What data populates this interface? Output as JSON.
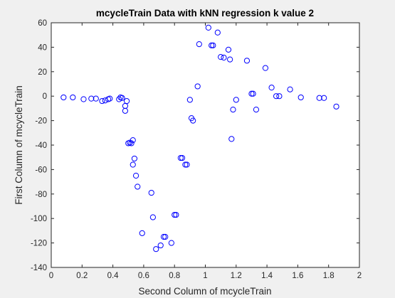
{
  "chart_data": {
    "type": "scatter",
    "title": "mcycleTrain Data with kNN regression k value 2",
    "xlabel": "Second Column of mcycleTrain",
    "ylabel": "First Column of mcycleTrain",
    "xlim": [
      0,
      2
    ],
    "ylim": [
      -140,
      60
    ],
    "xticks": [
      0,
      0.2,
      0.4,
      0.6,
      0.8,
      1,
      1.2,
      1.4,
      1.6,
      1.8,
      2
    ],
    "xtick_labels": [
      "0",
      "0.2",
      "0.4",
      "0.6",
      "0.8",
      "1",
      "1.2",
      "1.4",
      "1.6",
      "1.8",
      "2"
    ],
    "yticks": [
      -140,
      -120,
      -100,
      -80,
      -60,
      -40,
      -20,
      0,
      20,
      40,
      60
    ],
    "ytick_labels": [
      "-140",
      "-120",
      "-100",
      "-80",
      "-60",
      "-40",
      "-20",
      "0",
      "20",
      "40",
      "60"
    ],
    "grid": false,
    "marker": "circle-open",
    "marker_color": "#0000ff",
    "points": [
      {
        "x": 0.08,
        "y": -1
      },
      {
        "x": 0.14,
        "y": -1
      },
      {
        "x": 0.21,
        "y": -2.5
      },
      {
        "x": 0.26,
        "y": -2
      },
      {
        "x": 0.29,
        "y": -2
      },
      {
        "x": 0.33,
        "y": -4
      },
      {
        "x": 0.35,
        "y": -3.5
      },
      {
        "x": 0.37,
        "y": -2.5
      },
      {
        "x": 0.38,
        "y": -2
      },
      {
        "x": 0.44,
        "y": -2.5
      },
      {
        "x": 0.45,
        "y": -1
      },
      {
        "x": 0.46,
        "y": -1.5
      },
      {
        "x": 0.48,
        "y": -8
      },
      {
        "x": 0.49,
        "y": -4
      },
      {
        "x": 0.48,
        "y": -12
      },
      {
        "x": 0.5,
        "y": -38.5
      },
      {
        "x": 0.51,
        "y": -38
      },
      {
        "x": 0.52,
        "y": -38.5
      },
      {
        "x": 0.53,
        "y": -36
      },
      {
        "x": 0.53,
        "y": -56
      },
      {
        "x": 0.54,
        "y": -51
      },
      {
        "x": 0.55,
        "y": -65
      },
      {
        "x": 0.56,
        "y": -74
      },
      {
        "x": 0.59,
        "y": -112
      },
      {
        "x": 0.65,
        "y": -79
      },
      {
        "x": 0.66,
        "y": -99
      },
      {
        "x": 0.68,
        "y": -125
      },
      {
        "x": 0.71,
        "y": -122
      },
      {
        "x": 0.73,
        "y": -115
      },
      {
        "x": 0.74,
        "y": -115
      },
      {
        "x": 0.78,
        "y": -120
      },
      {
        "x": 0.8,
        "y": -97
      },
      {
        "x": 0.81,
        "y": -97
      },
      {
        "x": 0.84,
        "y": -50.5
      },
      {
        "x": 0.85,
        "y": -50.5
      },
      {
        "x": 0.87,
        "y": -56
      },
      {
        "x": 0.88,
        "y": -56
      },
      {
        "x": 0.9,
        "y": -3
      },
      {
        "x": 0.91,
        "y": -18
      },
      {
        "x": 0.92,
        "y": -20
      },
      {
        "x": 0.95,
        "y": 8
      },
      {
        "x": 0.96,
        "y": 42.5
      },
      {
        "x": 1.02,
        "y": 56
      },
      {
        "x": 1.04,
        "y": 41.5
      },
      {
        "x": 1.05,
        "y": 41.5
      },
      {
        "x": 1.08,
        "y": 52
      },
      {
        "x": 1.1,
        "y": 32
      },
      {
        "x": 1.12,
        "y": 31.5
      },
      {
        "x": 1.15,
        "y": 38
      },
      {
        "x": 1.16,
        "y": 30
      },
      {
        "x": 1.17,
        "y": -35
      },
      {
        "x": 1.18,
        "y": -11
      },
      {
        "x": 1.2,
        "y": -3
      },
      {
        "x": 1.27,
        "y": 29
      },
      {
        "x": 1.3,
        "y": 2
      },
      {
        "x": 1.31,
        "y": 2
      },
      {
        "x": 1.33,
        "y": -11
      },
      {
        "x": 1.39,
        "y": 23
      },
      {
        "x": 1.43,
        "y": 7
      },
      {
        "x": 1.46,
        "y": 0
      },
      {
        "x": 1.48,
        "y": 0
      },
      {
        "x": 1.55,
        "y": 5.5
      },
      {
        "x": 1.62,
        "y": -1
      },
      {
        "x": 1.74,
        "y": -1.5
      },
      {
        "x": 1.77,
        "y": -1.5
      },
      {
        "x": 1.85,
        "y": -8.5
      }
    ]
  }
}
